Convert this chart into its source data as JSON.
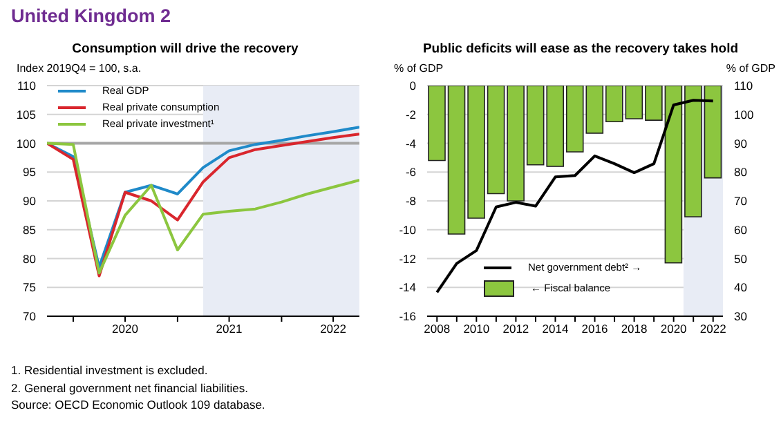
{
  "chart_data": [
    {
      "type": "line",
      "title": "Consumption will drive the recovery",
      "ylabel": "Index 2019Q4 = 100, s.a.",
      "annotations": [
        "United Kingdom 2",
        "1. Residential investment is excluded.",
        "2. General government net financial liabilities.",
        "Source: OECD Economic Outlook 109 database."
      ],
      "x": [
        "2019-10",
        "2020-01",
        "2020-04",
        "2020-07",
        "2020-10",
        "2021-01",
        "2021-04",
        "2021-07",
        "2021-10",
        "2022-01",
        "2022-04",
        "2022-07",
        "2022-10"
      ],
      "series": [
        {
          "name": "Real GDP",
          "color": "#1f8ac9",
          "values": [
            100,
            97.7,
            78.5,
            91.5,
            92.7,
            91.2,
            95.8,
            98.7,
            99.8,
            100.5,
            101.3,
            102,
            102.8
          ]
        },
        {
          "name": "Real private consumption",
          "color": "#d9262d",
          "values": [
            100,
            97.2,
            77,
            91.5,
            90,
            86.7,
            93.3,
            97.5,
            98.9,
            99.6,
            100.3,
            101,
            101.6
          ]
        },
        {
          "name": "Real private investment¹",
          "color": "#8cc63f",
          "values": [
            100,
            99.8,
            77.5,
            87.5,
            92.7,
            81.5,
            87.7,
            88.2,
            88.6,
            89.8,
            91.2,
            92.4,
            93.6
          ]
        }
      ],
      "xlim": [
        "2019-10",
        "2022-10"
      ],
      "xticks": [
        {
          "value": "2020-01",
          "label": null
        },
        {
          "value": "2020-07",
          "label": "2020"
        },
        {
          "value": "2021-01",
          "label": null
        },
        {
          "value": "2021-07",
          "label": "2021"
        },
        {
          "value": "2022-01",
          "label": null
        },
        {
          "value": "2022-07",
          "label": "2022"
        }
      ],
      "ylim": [
        70,
        110
      ],
      "yticks": [
        70,
        75,
        80,
        85,
        90,
        95,
        100,
        105,
        110
      ],
      "ref_lines": [
        {
          "axis": "y",
          "value": 100,
          "color": "#a6a6a6"
        }
      ],
      "bands": [
        {
          "axis": "x",
          "from": "2021-04",
          "to": "2022-10",
          "color": "#e8ecf5"
        }
      ],
      "grid": "y",
      "legend": "top left",
      "marker": "none",
      "line_style": "solid"
    },
    {
      "type": "bar",
      "title": "Public deficits will ease as the recovery takes hold",
      "ylabel": "% of GDP",
      "y2label": "% of GDP",
      "x": [
        2008,
        2009,
        2010,
        2011,
        2012,
        2013,
        2014,
        2015,
        2016,
        2017,
        2018,
        2019,
        2020,
        2021,
        2022
      ],
      "series": [
        {
          "name": "Net government debt² →",
          "type": "line",
          "axis": "y2",
          "color": "#000000",
          "values": [
            38.3,
            48.3,
            52.8,
            67.9,
            69.5,
            68.2,
            78.3,
            78.8,
            85.6,
            82.9,
            79.8,
            82.9,
            103.3,
            104.9,
            104.7
          ]
        },
        {
          "name": "← Fiscal balance",
          "type": "bar",
          "color": "#8cc63f",
          "values": [
            -5.2,
            -10.3,
            -9.2,
            -7.5,
            -8,
            -5.5,
            -5.6,
            -4.6,
            -3.3,
            -2.5,
            -2.3,
            -2.4,
            -12.3,
            -9.1,
            -6.4
          ]
        }
      ],
      "xlim": [
        2007.5,
        2022.5
      ],
      "xticks": [
        2008,
        {
          "value": 2009,
          "label": null
        },
        2010,
        {
          "value": 2011,
          "label": null
        },
        2012,
        {
          "value": 2013,
          "label": null
        },
        2014,
        {
          "value": 2015,
          "label": null
        },
        2016,
        {
          "value": 2017,
          "label": null
        },
        2018,
        {
          "value": 2019,
          "label": null
        },
        2020,
        {
          "value": 2021,
          "label": null
        },
        2022
      ],
      "ylim": [
        -16,
        0
      ],
      "yticks": [
        -16,
        -14,
        -12,
        -10,
        -8,
        -6,
        -4,
        -2,
        0
      ],
      "y2lim": [
        30,
        110
      ],
      "y2ticks": [
        30,
        40,
        50,
        60,
        70,
        80,
        90,
        100,
        110
      ],
      "bands": [
        {
          "axis": "x",
          "from": 2020.5,
          "to": 2022.5,
          "color": "#e8ecf5"
        }
      ],
      "grid": "y",
      "legend": "bottom left",
      "marker": "none",
      "line_style": "solid"
    }
  ]
}
